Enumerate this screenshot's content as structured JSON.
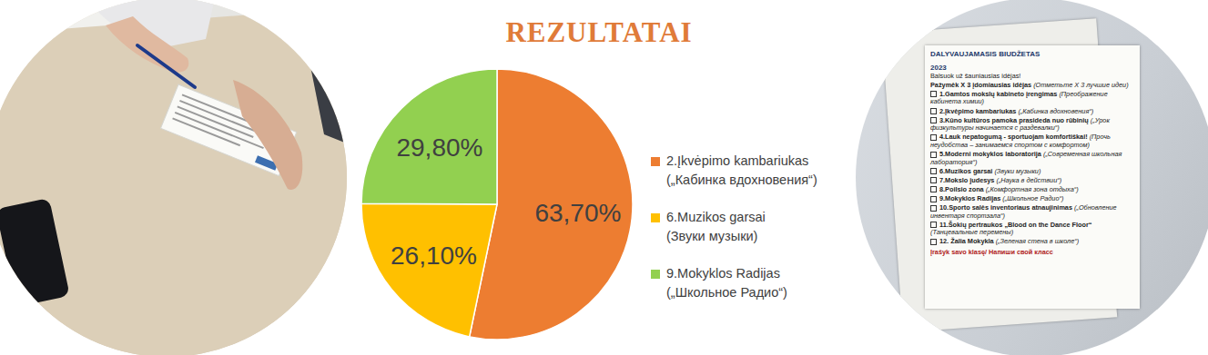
{
  "chart_data": {
    "type": "pie",
    "title": "REZULTATAI",
    "categories": [
      "2.Įkvėpimo kambariukas („Кабинка вдохновения“)",
      "6.Muzikos garsai (Звуки музыки)",
      "9.Mokyklos Radijas („Школьное Радио“)"
    ],
    "values": [
      63.7,
      26.1,
      29.8
    ],
    "value_labels": [
      "63,70%",
      "26,10%",
      "29,80%"
    ],
    "colors": [
      "#ed7d31",
      "#ffc000",
      "#92d050"
    ],
    "data_labels": true,
    "legend": "right"
  },
  "ballot": {
    "header": "DALYVAUJAMASIS BIUDŽETAS",
    "year": "2023",
    "call": "Balsuok už šauniausias idėjas!",
    "instruction": "Pažymėk X 3 įdomiausias idėjas",
    "instruction_ru": "(Отметьте X 3 лучшие идеи)",
    "items": [
      {
        "label": "1.Gamtos mokslų kabineto įrengimas",
        "translation": "(Преображение кабинета химии)"
      },
      {
        "label": "2.Įkvėpimo kambariukas",
        "translation": "(„Кабинка вдохновения“)"
      },
      {
        "label": "3.Kūno kultūros pamoka prasideda nuo rūbinių",
        "translation": "(„Урок физкультуры начинается с раздевалки“)"
      },
      {
        "label": "4.Lauk nepatogumą - sportuojam komfortiškai!",
        "translation": "(Прочь неудобства – занимаемся спортом с комфортом)"
      },
      {
        "label": "5.Moderni mokyklos laboratorija",
        "translation": "(„Современная школьная лаборатория“)"
      },
      {
        "label": "6.Muzikos garsai",
        "translation": "(Звуки музыки)"
      },
      {
        "label": "7.Mokslo judesys",
        "translation": "(„Наука в действии“)"
      },
      {
        "label": "8.Poilsio zona",
        "translation": "(„Комфортная зона отдыха“)"
      },
      {
        "label": "9.Mokyklos Radijas",
        "translation": "(„Школьное Радио“)"
      },
      {
        "label": "10.Sporto salės inventoriaus atnaujinimas",
        "translation": "(„Обновление инвентаря спортзала“)"
      },
      {
        "label": "11.Šokių pertraukos „Blood on the Dance Floor“",
        "translation": "(Танцевальные перемены)"
      },
      {
        "label": "12. Žalia Mokykla",
        "translation": "(„Зеленая стена в школе“)"
      }
    ],
    "footer": "Įrašyk savo klasę/ Напиши свой класс"
  }
}
